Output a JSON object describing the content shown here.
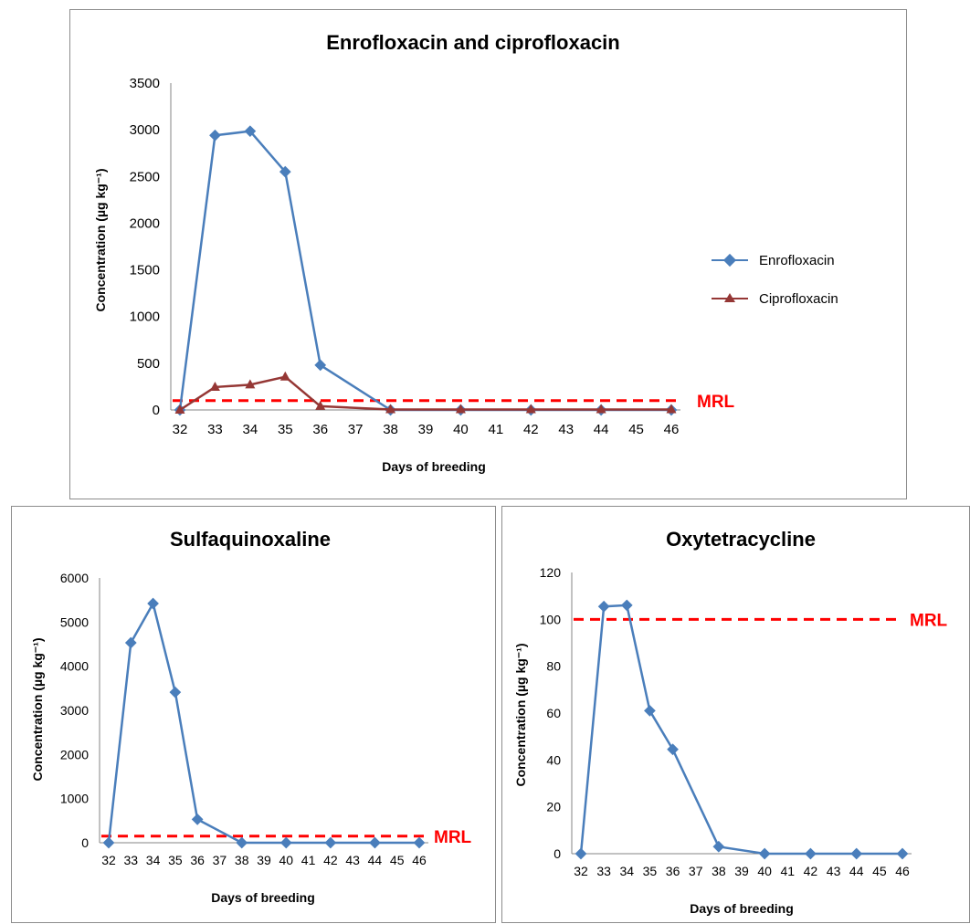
{
  "colors": {
    "enrofloxacin": "#4a7ebb",
    "ciprofloxacin": "#953735",
    "series": "#4a7ebb",
    "mrl": "#ff0000",
    "axis": "#868686"
  },
  "chart_data": [
    {
      "type": "line",
      "title": "Enrofloxacin and ciprofloxacin",
      "xlabel": "Days of breeding",
      "ylabel": "Concentration (µg kg⁻¹)",
      "x": [
        "32",
        "33",
        "34",
        "35",
        "36",
        "37",
        "38",
        "39",
        "40",
        "41",
        "42",
        "43",
        "44",
        "45",
        "46"
      ],
      "ylim": [
        0,
        3500
      ],
      "yticks": [
        0,
        500,
        1000,
        1500,
        2000,
        2500,
        3000,
        3500
      ],
      "legend": "right",
      "series": [
        {
          "name": "Enrofloxacin",
          "marker": "diamond",
          "points": [
            [
              32,
              0
            ],
            [
              33,
              2940
            ],
            [
              34,
              2985
            ],
            [
              35,
              2550
            ],
            [
              36,
              480
            ],
            [
              38,
              0
            ],
            [
              40,
              0
            ],
            [
              42,
              0
            ],
            [
              44,
              0
            ],
            [
              46,
              0
            ]
          ]
        },
        {
          "name": "Ciprofloxacin",
          "marker": "triangle",
          "points": [
            [
              32,
              0
            ],
            [
              33,
              245
            ],
            [
              34,
              270
            ],
            [
              35,
              355
            ],
            [
              36,
              40
            ],
            [
              38,
              5
            ],
            [
              40,
              5
            ],
            [
              42,
              5
            ],
            [
              44,
              5
            ],
            [
              46,
              5
            ]
          ]
        }
      ],
      "mrl": {
        "label": "MRL",
        "value": 100
      }
    },
    {
      "type": "line",
      "title": "Sulfaquinoxaline",
      "xlabel": "Days of breeding",
      "ylabel": "Concentration (µg kg⁻¹)",
      "x": [
        "32",
        "33",
        "34",
        "35",
        "36",
        "37",
        "38",
        "39",
        "40",
        "41",
        "42",
        "43",
        "44",
        "45",
        "46"
      ],
      "ylim": [
        0,
        6000
      ],
      "yticks": [
        0,
        1000,
        2000,
        3000,
        4000,
        5000,
        6000
      ],
      "series": [
        {
          "marker": "diamond",
          "points": [
            [
              32,
              0
            ],
            [
              33,
              4530
            ],
            [
              34,
              5420
            ],
            [
              35,
              3410
            ],
            [
              36,
              530
            ],
            [
              38,
              0
            ],
            [
              40,
              0
            ],
            [
              42,
              0
            ],
            [
              44,
              0
            ],
            [
              46,
              0
            ]
          ]
        }
      ],
      "mrl": {
        "label": "MRL",
        "value": 150
      }
    },
    {
      "type": "line",
      "title": "Oxytetracycline",
      "xlabel": "Days of breeding",
      "ylabel": "Concentration (µg kg⁻¹)",
      "x": [
        "32",
        "33",
        "34",
        "35",
        "36",
        "37",
        "38",
        "39",
        "40",
        "41",
        "42",
        "43",
        "44",
        "45",
        "46"
      ],
      "ylim": [
        0,
        120
      ],
      "yticks": [
        0,
        20,
        40,
        60,
        80,
        100,
        120
      ],
      "series": [
        {
          "marker": "diamond",
          "points": [
            [
              32,
              0
            ],
            [
              33,
              105.5
            ],
            [
              34,
              106
            ],
            [
              35,
              61
            ],
            [
              36,
              44.5
            ],
            [
              38,
              3
            ],
            [
              40,
              0
            ],
            [
              42,
              0
            ],
            [
              44,
              0
            ],
            [
              46,
              0
            ]
          ]
        }
      ],
      "mrl": {
        "label": "MRL",
        "value": 100
      }
    }
  ]
}
